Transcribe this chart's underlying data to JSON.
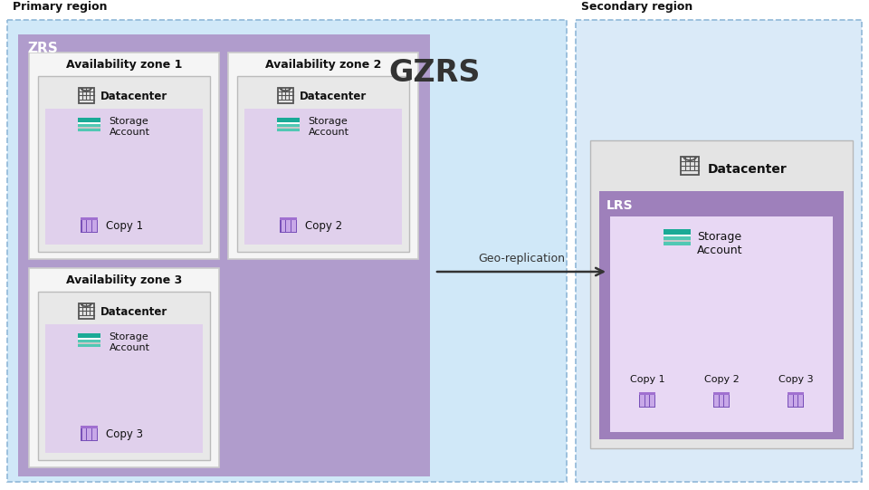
{
  "fig_width": 9.6,
  "fig_height": 5.41,
  "bg_color": "#ffffff",
  "primary_region_color": "#d0e8f8",
  "secondary_region_color": "#daeaf8",
  "zrs_box_color": "#b09ccc",
  "az_box_fill": "#f5f5f5",
  "az_border_color": "#cccccc",
  "dc_box_color": "#e8e8e8",
  "storage_inner_color": "#e0d0ec",
  "lrs_box_color": "#9e80bb",
  "lrs_inner_color": "#e8d8f4",
  "teal_dark": "#1aaa96",
  "teal_mid": "#50c8b4",
  "white": "#ffffff",
  "gray_stripe": "#c8c8c8",
  "purple_icon": "#7850b8",
  "purple_icon_light": "#c8a8e8",
  "purple_icon_mid": "#a070d0",
  "primary_label": "Primary region",
  "secondary_label": "Secondary region",
  "gzrs_label": "GZRS",
  "zrs_label": "ZRS",
  "lrs_label": "LRS",
  "datacenter_label": "Datacenter",
  "storage_label": "Storage\nAccount",
  "geo_label": "Geo-replication",
  "az_labels": [
    "Availability zone 1",
    "Availability zone 2",
    "Availability zone 3"
  ],
  "copy_labels": [
    "Copy 1",
    "Copy 2",
    "Copy 3"
  ]
}
